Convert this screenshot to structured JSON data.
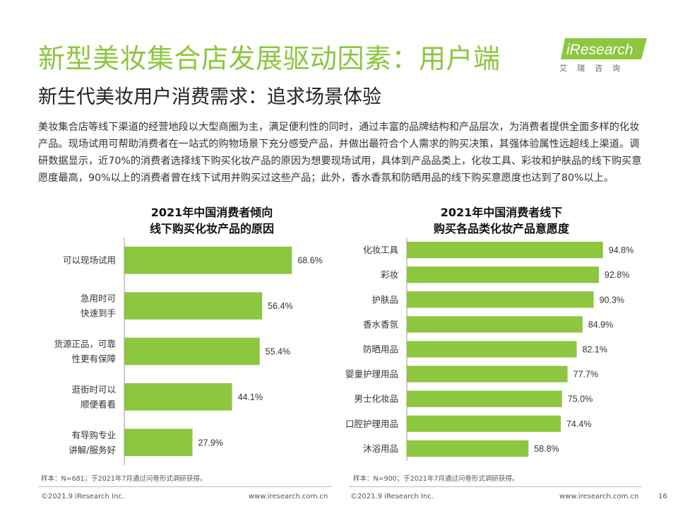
{
  "header": {
    "title": "新型美妆集合店发展驱动因素：用户端",
    "subtitle": "新生代美妆用户消费需求：追求场景体验",
    "logo_text": "iResearch",
    "logo_sub": "艾瑞咨询"
  },
  "intro": "美妆集合店等线下渠道的经营地段以大型商圈为主，满足便利性的同时，通过丰富的品牌结构和产品层次，为消费者提供全面多样的化妆产品。现场试用可帮助消费者在一站式的购物场景下充分感受产品，并做出最符合个人需求的购买决策，其强体验属性远超线上渠道。调研数据显示，近70%的消费者选择线下购买化妆产品的原因为想要现场试用，具体到产品品类上，化妆工具、彩妆和护肤品的线下购买意愿度最高，90%以上的消费者曾在线下试用并购买过这些产品；此外，香水香氛和防晒用品的线下购买意愿度也达到了80%以上。",
  "colors": {
    "accent": "#8dc63f",
    "bar": "#8dc63f",
    "axis": "#9a9a9a"
  },
  "chart_data": [
    {
      "type": "bar",
      "orientation": "horizontal",
      "title_lines": [
        "2021年中国消费者倾向",
        "线下购买化妆产品的原因"
      ],
      "categories": [
        [
          "可以现场试用"
        ],
        [
          "急用时可",
          "快速到手"
        ],
        [
          "货源正品，可靠",
          "性更有保障"
        ],
        [
          "逛街时可以",
          "顺便看看"
        ],
        [
          "有导购专业",
          "讲解/服务好"
        ]
      ],
      "values": [
        68.6,
        56.4,
        55.4,
        44.1,
        27.9
      ],
      "value_labels": [
        "68.6%",
        "56.4%",
        "55.4%",
        "44.1%",
        "27.9%"
      ],
      "xlim": [
        0,
        100
      ],
      "note": "样本：N=681；于2021年7月通过问卷形式调研获得。"
    },
    {
      "type": "bar",
      "orientation": "horizontal",
      "title_lines": [
        "2021年中国消费者线下",
        "购买各品类化妆产品意愿度"
      ],
      "categories": [
        [
          "化妆工具"
        ],
        [
          "彩妆"
        ],
        [
          "护肤品"
        ],
        [
          "香水香氛"
        ],
        [
          "防晒用品"
        ],
        [
          "婴童护理用品"
        ],
        [
          "男士化妆品"
        ],
        [
          "口腔护理用品"
        ],
        [
          "沐浴用品"
        ]
      ],
      "values": [
        94.8,
        92.8,
        90.3,
        84.9,
        82.1,
        77.7,
        75.0,
        74.4,
        58.8
      ],
      "value_labels": [
        "94.8%",
        "92.8%",
        "90.3%",
        "84.9%",
        "82.1%",
        "77.7%",
        "75.0%",
        "74.4%",
        "58.8%"
      ],
      "xlim": [
        0,
        100
      ],
      "note": "样本：N=900；于2021年7月通过问卷形式调研获得。"
    }
  ],
  "footer": {
    "copyright": "©2021.9 iResearch Inc.",
    "website": "www.iresearch.com.cn",
    "page_number": "16"
  }
}
